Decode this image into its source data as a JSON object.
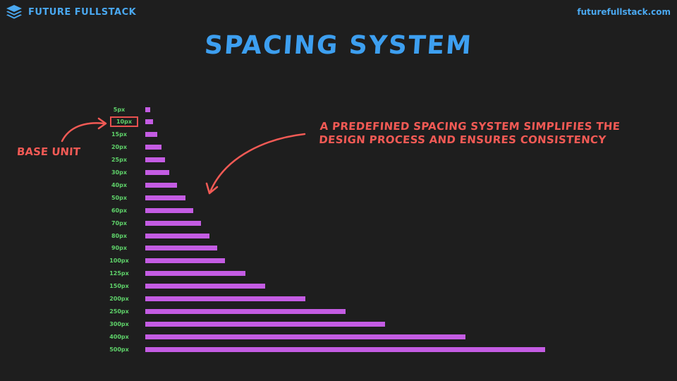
{
  "header": {
    "brand_name": "FUTURE FULLSTACK",
    "brand_icon": "layers-icon",
    "site_url": "futurefullstack.com"
  },
  "page": {
    "title": "SPACING SYSTEM"
  },
  "colors": {
    "background": "#1e1e1e",
    "brand_blue": "#4aa8f0",
    "label_green": "#5fd36a",
    "bar_purple": "#c45ce3",
    "annotation_red": "#f25a55"
  },
  "annotations": {
    "base_unit": "BASE UNIT",
    "note_line1": "A PREDEFINED SPACING SYSTEM SIMPLIFIES THE",
    "note_line2": "DESIGN PROCESS AND ENSURES CONSISTENCY"
  },
  "scale": {
    "base_value": "10px",
    "items": [
      {
        "label": "5px",
        "value": 5
      },
      {
        "label": "10px",
        "value": 10
      },
      {
        "label": "15px",
        "value": 15
      },
      {
        "label": "20px",
        "value": 20
      },
      {
        "label": "25px",
        "value": 25
      },
      {
        "label": "30px",
        "value": 30
      },
      {
        "label": "40px",
        "value": 40
      },
      {
        "label": "50px",
        "value": 50
      },
      {
        "label": "60px",
        "value": 60
      },
      {
        "label": "70px",
        "value": 70
      },
      {
        "label": "80px",
        "value": 80
      },
      {
        "label": "90px",
        "value": 90
      },
      {
        "label": "100px",
        "value": 100
      },
      {
        "label": "125px",
        "value": 125
      },
      {
        "label": "150px",
        "value": 150
      },
      {
        "label": "200px",
        "value": 200
      },
      {
        "label": "250px",
        "value": 250
      },
      {
        "label": "300px",
        "value": 300
      },
      {
        "label": "400px",
        "value": 400
      },
      {
        "label": "500px",
        "value": 500
      }
    ]
  }
}
